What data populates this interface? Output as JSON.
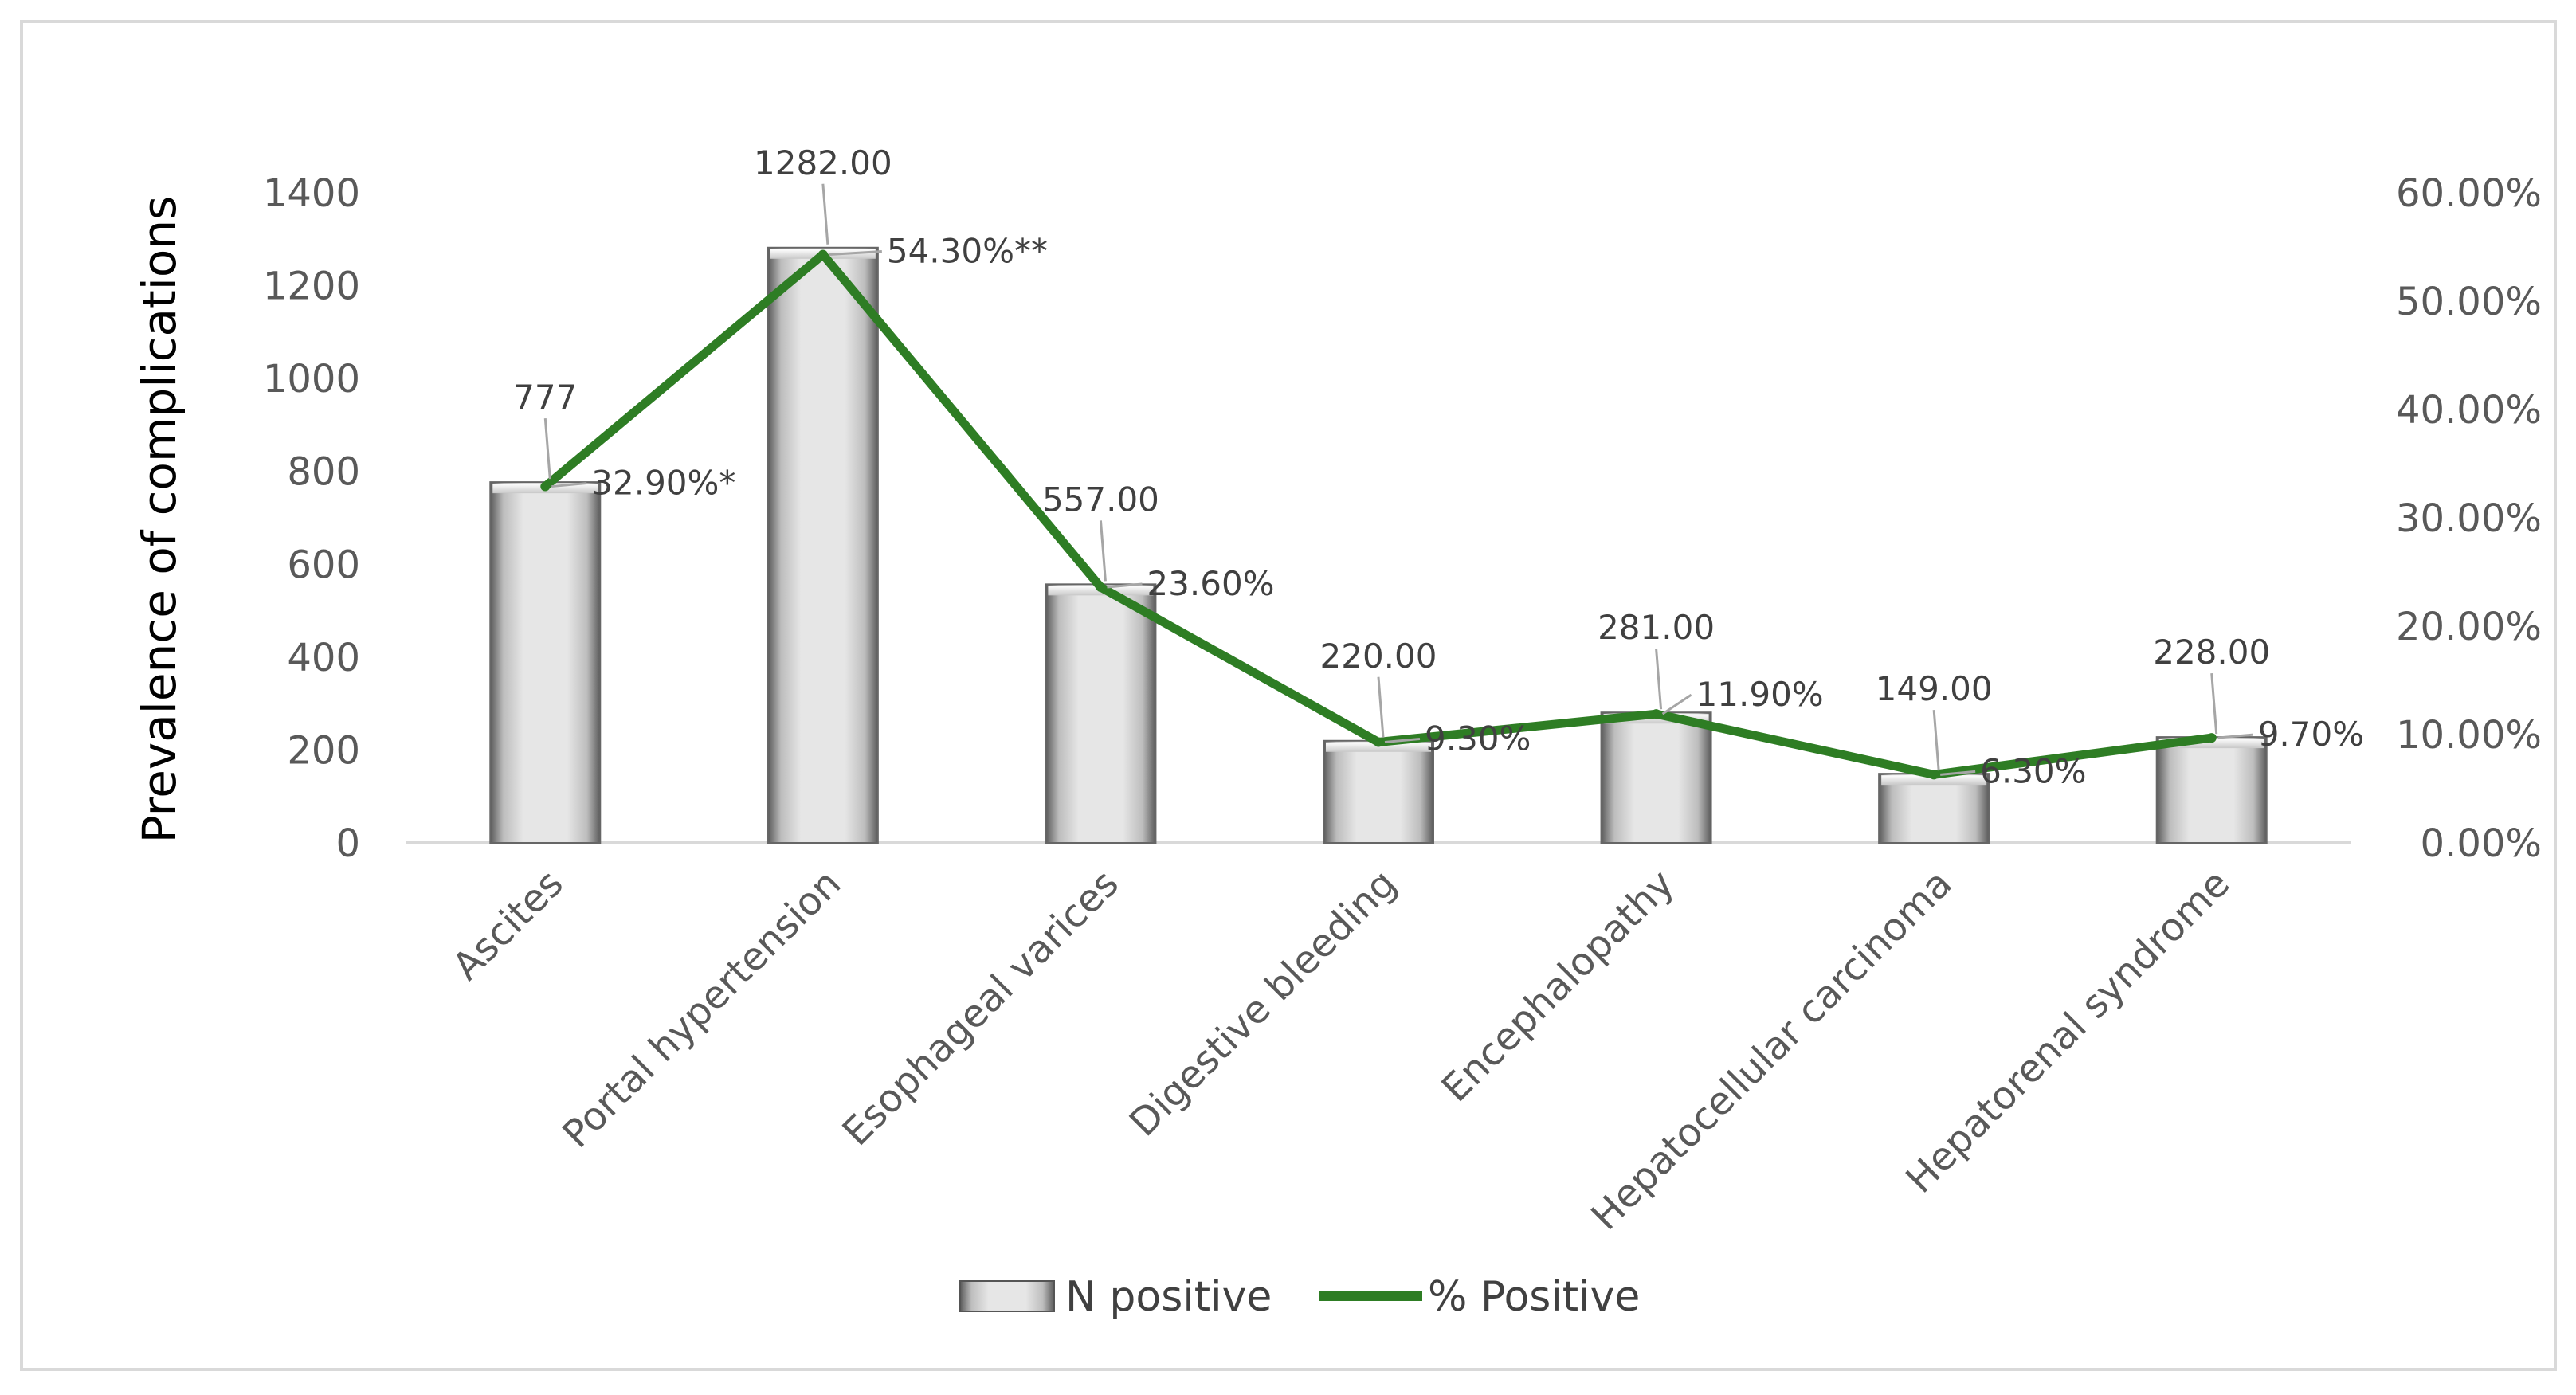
{
  "chart_data": {
    "type": "bar",
    "combo": "bar-line-dual-axis",
    "categories": [
      "Ascites",
      "Portal hypertension",
      "Esophageal varices",
      "Digestive bleeding",
      "Encephalopathy",
      "Hepatocellular carcinoma",
      "Hepatorenal syndrome"
    ],
    "series": [
      {
        "name": "N positive",
        "type": "bar",
        "axis": "left",
        "values": [
          777,
          1282,
          557,
          220,
          281,
          149,
          228
        ],
        "labels": [
          "777",
          "1282.00",
          "557.00",
          "220.00",
          "281.00",
          "149.00",
          "228.00"
        ],
        "color": "#d9d9d9"
      },
      {
        "name": "% Positive",
        "type": "line",
        "axis": "right",
        "values": [
          32.9,
          54.3,
          23.6,
          9.3,
          11.9,
          6.3,
          9.7
        ],
        "labels": [
          "32.90%*",
          "54.30%**",
          "23.60%",
          "9.30%",
          "11.90%",
          "6.30%",
          "9.70%"
        ],
        "color": "#2e7d24"
      }
    ],
    "ylabel": "Prevalence of complications",
    "ylim": [
      0,
      1400
    ],
    "y_ticks": [
      "0",
      "200",
      "400",
      "600",
      "800",
      "1000",
      "1200",
      "1400"
    ],
    "y2lim": [
      0,
      60
    ],
    "y2_ticks": [
      "0.00%",
      "10.00%",
      "20.00%",
      "30.00%",
      "40.00%",
      "50.00%",
      "60.00%"
    ],
    "legend": "bottom",
    "grid": false,
    "frame_color": "#d9d9d9"
  }
}
